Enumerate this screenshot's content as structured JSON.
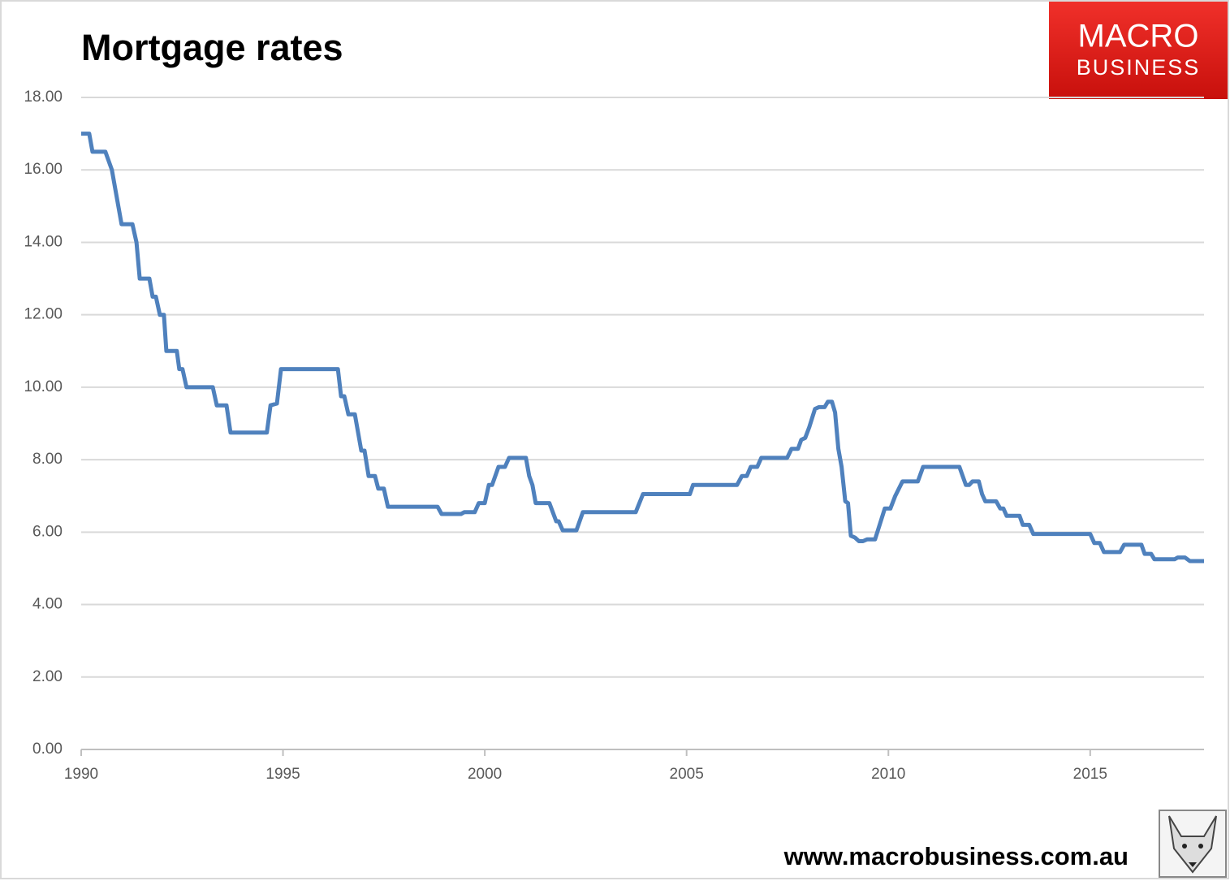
{
  "chart_data": {
    "type": "line",
    "title": "Mortgage rates",
    "logo": {
      "line1": "MACRO",
      "line2": "BUSINESS"
    },
    "website": "www.macrobusiness.com.au",
    "x": [
      1990.0,
      1990.2,
      1990.28,
      1990.6,
      1990.76,
      1991.0,
      1991.27,
      1991.37,
      1991.45,
      1991.69,
      1991.77,
      1991.85,
      1991.95,
      1992.05,
      1992.11,
      1992.37,
      1992.43,
      1992.51,
      1992.61,
      1993.26,
      1993.36,
      1993.6,
      1993.7,
      1994.6,
      1994.69,
      1994.85,
      1994.95,
      1996.36,
      1996.44,
      1996.52,
      1996.62,
      1996.78,
      1996.94,
      1997.02,
      1997.12,
      1997.28,
      1997.36,
      1997.5,
      1997.6,
      1998.83,
      1998.93,
      1999.41,
      1999.49,
      1999.75,
      1999.85,
      2000.0,
      2000.1,
      2000.18,
      2000.34,
      2000.5,
      2000.6,
      2001.02,
      2001.1,
      2001.18,
      2001.26,
      2001.6,
      2001.77,
      2001.83,
      2001.93,
      2002.27,
      2002.43,
      2003.74,
      2003.92,
      2005.08,
      2005.16,
      2006.25,
      2006.37,
      2006.49,
      2006.59,
      2006.75,
      2006.85,
      2007.49,
      2007.6,
      2007.76,
      2007.84,
      2007.94,
      2008.04,
      2008.18,
      2008.28,
      2008.42,
      2008.5,
      2008.6,
      2008.68,
      2008.76,
      2008.84,
      2008.93,
      2009.0,
      2009.07,
      2009.17,
      2009.27,
      2009.37,
      2009.47,
      2009.67,
      2009.91,
      2010.05,
      2010.17,
      2010.35,
      2010.73,
      2010.86,
      2011.76,
      2011.92,
      2012.0,
      2012.08,
      2012.24,
      2012.32,
      2012.4,
      2012.67,
      2012.77,
      2012.85,
      2012.93,
      2013.25,
      2013.33,
      2013.49,
      2013.59,
      2015.0,
      2015.1,
      2015.24,
      2015.34,
      2015.74,
      2015.84,
      2016.27,
      2016.35,
      2016.51,
      2016.59,
      2017.09,
      2017.17,
      2017.35,
      2017.47,
      2017.82
    ],
    "series": [
      {
        "name": "Mortgage rates",
        "color": "#4f81bd",
        "values": [
          17,
          17,
          16.5,
          16.5,
          16,
          14.5,
          14.5,
          14,
          13,
          13,
          12.5,
          12.5,
          12,
          12,
          11,
          11,
          10.5,
          10.5,
          10,
          10,
          9.5,
          9.5,
          8.75,
          8.75,
          9.5,
          9.55,
          10.5,
          10.5,
          9.75,
          9.75,
          9.25,
          9.25,
          8.25,
          8.25,
          7.55,
          7.55,
          7.2,
          7.2,
          6.7,
          6.7,
          6.5,
          6.5,
          6.55,
          6.55,
          6.8,
          6.8,
          7.3,
          7.3,
          7.8,
          7.8,
          8.05,
          8.05,
          7.55,
          7.3,
          6.8,
          6.8,
          6.3,
          6.3,
          6.05,
          6.05,
          6.55,
          6.55,
          7.05,
          7.05,
          7.3,
          7.3,
          7.55,
          7.55,
          7.8,
          7.8,
          8.05,
          8.05,
          8.3,
          8.3,
          8.55,
          8.6,
          8.9,
          9.4,
          9.45,
          9.45,
          9.6,
          9.6,
          9.3,
          8.3,
          7.8,
          6.85,
          6.8,
          5.9,
          5.85,
          5.75,
          5.75,
          5.8,
          5.8,
          6.65,
          6.65,
          7.0,
          7.4,
          7.4,
          7.8,
          7.8,
          7.3,
          7.3,
          7.4,
          7.4,
          7.05,
          6.85,
          6.85,
          6.65,
          6.65,
          6.45,
          6.45,
          6.2,
          6.2,
          5.95,
          5.95,
          5.7,
          5.7,
          5.45,
          5.45,
          5.65,
          5.65,
          5.4,
          5.4,
          5.25,
          5.25,
          5.3,
          5.3,
          5.2,
          5.2
        ]
      }
    ],
    "xlim": [
      1990,
      2017.82
    ],
    "xticks": [
      1990,
      1995,
      2000,
      2005,
      2010,
      2015
    ],
    "ylim": [
      0,
      18
    ],
    "yticks": [
      {
        "value": 0,
        "label": "0.00"
      },
      {
        "value": 2,
        "label": "2.00"
      },
      {
        "value": 4,
        "label": "4.00"
      },
      {
        "value": 6,
        "label": "6.00"
      },
      {
        "value": 8,
        "label": "8.00"
      },
      {
        "value": 10,
        "label": "10.00"
      },
      {
        "value": 12,
        "label": "12.00"
      },
      {
        "value": 14,
        "label": "14.00"
      },
      {
        "value": 16,
        "label": "16.00"
      },
      {
        "value": 18,
        "label": "18.00"
      }
    ],
    "grid": true
  }
}
